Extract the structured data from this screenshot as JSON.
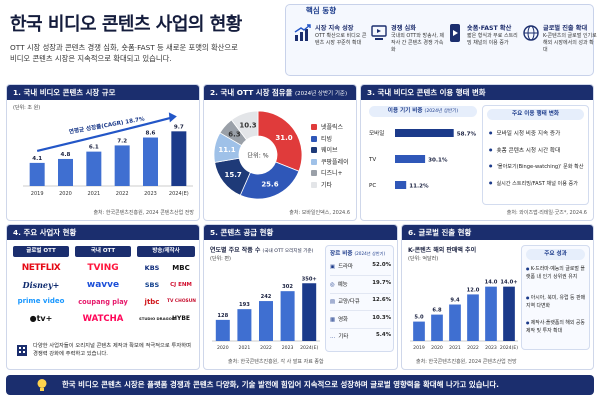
{
  "header": {
    "title": "한국 비디오 콘텐츠 사업의 현황",
    "subtitle_line1": "OTT 시장 성장과 콘텐츠 경쟁 심화, 숏폼·FAST 등 새로운 포맷의 확산으로",
    "subtitle_line2": "비디오 콘텐츠 시장은 지속적으로 확대되고 있습니다."
  },
  "core": {
    "title": "핵심 동향",
    "items": [
      {
        "icon": "growth-chart-icon",
        "title": "시장 지속 성장",
        "desc": "OTT 확산으로 비디오 콘텐츠 시장 꾸준히 확대"
      },
      {
        "icon": "competition-icon",
        "title": "경쟁 심화",
        "desc": "국내외 OTT와 방송사, 제작사 간 콘텐츠 경쟁 가속화"
      },
      {
        "icon": "shortform-icon",
        "title": "숏폼·FAST 확산",
        "desc": "짧은 형식과 무료 스트리밍 채널의 이용 증가"
      },
      {
        "icon": "globe-icon",
        "title": "글로벌 진출 확대",
        "desc": "K-콘텐츠의 글로벌 인기로 해외 시장에서의 성과 확대"
      }
    ]
  },
  "sections": {
    "s1": {
      "title": "1. 국내 비디오 콘텐츠 시장 규모",
      "unit": "(단위: 조 원)",
      "cagr": "연평균 성장률(CAGR) 18.7%",
      "source": "출처: 한국콘텐츠진흥원, 2024 콘텐츠산업 전망"
    },
    "s2": {
      "title": "2. 국내 OTT 시장 점유율",
      "title_sub": "(2024년 상반기 기준)",
      "center": "단위: %",
      "source": "출처: 모바일인덱스, 2024.6"
    },
    "s3": {
      "title": "3. 국내 비디오 콘텐츠 이용 행태 변화",
      "box1_title": "이용 기기 비중",
      "box1_sub": "(2024년 상반기)",
      "box2_title": "주요 이용 행태 변화",
      "source": "출처: 와이즈앱·리테일·굿즈*, 2024.6"
    },
    "s4": {
      "title": "4. 주요 사업자 현황",
      "col1": "글로벌 OTT",
      "col2": "국내 OTT",
      "col3": "방송/제작사",
      "note_line1": "다양한 사업자들이 오리지널 콘텐츠 제작과 확보에 적극적으로 투자하며",
      "note_line2": "경쟁력 강화에 주력하고 있습니다."
    },
    "s5": {
      "title": "5. 콘텐츠 공급 현황",
      "chart_title": "연도별 주요 작품 수",
      "chart_title_sub": "(국내 OTT 오리지널 기준)",
      "unit": "(단위: 편)",
      "genre_title": "장르 비중",
      "genre_sub": "(2024년 상반기)",
      "source": "출처: 한국콘텐츠진흥원, 각 사 발표 자료 종합"
    },
    "s6": {
      "title": "6. 글로벌 진출 현황",
      "chart_title": "K-콘텐츠 해외 판매액 추이",
      "unit": "(단위: 억달러)",
      "box_title": "주요 성과",
      "source": "출처: 한국콘텐츠진흥원, 2024 콘텐츠산업 전망"
    }
  },
  "global_ott": [
    "NETFLIX",
    "Disney+",
    "prime video",
    "tv+"
  ],
  "domestic_ott": [
    "TVING",
    "wavve",
    "coupang play",
    "WATCHA"
  ],
  "broadcasters": [
    "KBS",
    "MBC",
    "SBS",
    "CJ ENM",
    "jtbc",
    "TV CHOSUN",
    "STUDIO DRAGON",
    "HYBE"
  ],
  "usage_changes": [
    "모바일 시청 비중 지속 증가",
    "숏폼 콘텐츠 시청 시간 확대",
    "'몰아보기(Binge-watching)' 문화 확산",
    "실시간 스트리밍/FAST 채널 이용 증가"
  ],
  "global_achievements": [
    "K-드라마·예능의 글로벌 플랫폼 내 인기 상위권 유지",
    "아시아, 북미, 유럽 등 판매 지역 다변화",
    "제작사·플랫폼의 해외 공동제작 및 투자 확대"
  ],
  "colors": {
    "navy": "#1b2e6e",
    "accent_blue": "#2356c7",
    "red": "#e03b3b"
  },
  "footer": {
    "text": "한국 비디오 콘텐츠 시장은 플랫폼 경쟁과 콘텐츠 다양화, 기술 발전에 힘입어 지속적으로 성장하며 글로벌 영향력을 확대해 나가고 있습니다."
  },
  "chart_data": [
    {
      "type": "bar",
      "title": "1. 국내 비디오 콘텐츠 시장 규모",
      "ylabel": "(단위: 조 원)",
      "categories": [
        "2019",
        "2020",
        "2021",
        "2022",
        "2023",
        "2024(E)"
      ],
      "values": [
        4.1,
        4.8,
        6.1,
        7.2,
        8.6,
        9.7
      ],
      "ylim": [
        0,
        11
      ]
    },
    {
      "type": "pie",
      "title": "2. 국내 OTT 시장 점유율",
      "categories": [
        "넷플릭스",
        "티빙",
        "웨이브",
        "쿠팡플레이",
        "디즈니+",
        "기타"
      ],
      "values": [
        31.0,
        25.6,
        15.7,
        11.1,
        6.3,
        10.3
      ],
      "colors": [
        "#e03b3b",
        "#2f57b8",
        "#1e3a78",
        "#9fc1e8",
        "#9aa0a8",
        "#e3e5e8"
      ]
    },
    {
      "type": "bar",
      "title": "이용 기기 비중",
      "categories": [
        "모바일",
        "TV",
        "PC"
      ],
      "values": [
        58.7,
        30.1,
        11.2
      ],
      "unit": "%"
    },
    {
      "type": "bar",
      "title": "연도별 주요 작품 수",
      "ylabel": "(단위: 편)",
      "categories": [
        "2020",
        "2021",
        "2022",
        "2023",
        "2024(E)"
      ],
      "values": [
        128,
        193,
        242,
        302,
        350
      ],
      "value_labels": [
        "128",
        "193",
        "242",
        "302",
        "350+"
      ],
      "ylim": [
        0,
        400
      ]
    },
    {
      "type": "table",
      "title": "장르 비중",
      "categories": [
        "드라마",
        "예능",
        "교양/다큐",
        "영화",
        "기타"
      ],
      "values": [
        52.0,
        19.7,
        12.6,
        10.3,
        5.4
      ],
      "unit": "%"
    },
    {
      "type": "bar",
      "title": "K-콘텐츠 해외 판매액 추이",
      "ylabel": "(단위: 억달러)",
      "categories": [
        "2019",
        "2020",
        "2021",
        "2022",
        "2023",
        "2024(E)"
      ],
      "values": [
        5.0,
        6.8,
        9.4,
        12.0,
        14.0,
        14.0
      ],
      "value_labels": [
        "5.0",
        "6.8",
        "9.4",
        "12.0",
        "14.0",
        "14.0+"
      ],
      "ylim": [
        0,
        17
      ]
    }
  ]
}
